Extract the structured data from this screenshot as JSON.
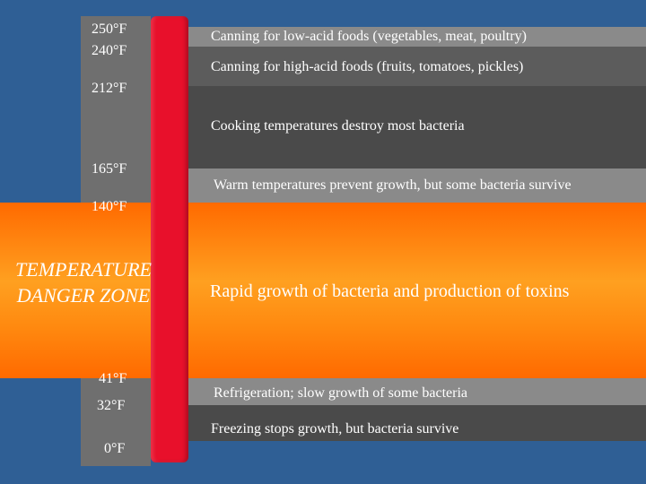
{
  "temperatures": {
    "t250": "250°F",
    "t240": "240°F",
    "t212": "212°F",
    "t165": "165°F",
    "t140": "140°F",
    "t41": "41°F",
    "t32": "32°F",
    "t0": "0°F"
  },
  "zones": {
    "low_acid_canning": "Canning for low-acid foods (vegetables, meat, poultry)",
    "high_acid_canning": "Canning for high-acid foods (fruits, tomatoes, pickles)",
    "cooking": "Cooking temperatures destroy most bacteria",
    "warm": "Warm temperatures prevent growth, but some bacteria survive",
    "danger": "Rapid growth of bacteria and production of toxins",
    "refrigeration": "Refrigeration; slow growth of some bacteria",
    "freezing": "Freezing stops growth, but bacteria survive"
  },
  "danger_zone": {
    "line1": "TEMPERATURE",
    "line2": "DANGER ZONE"
  },
  "colors": {
    "background": "#2f5f95",
    "gray_light": "#8a8a8a",
    "gray_dark": "#4a4a4a",
    "danger_orange": "#ff7a00",
    "thermometer": "#e8102b"
  }
}
